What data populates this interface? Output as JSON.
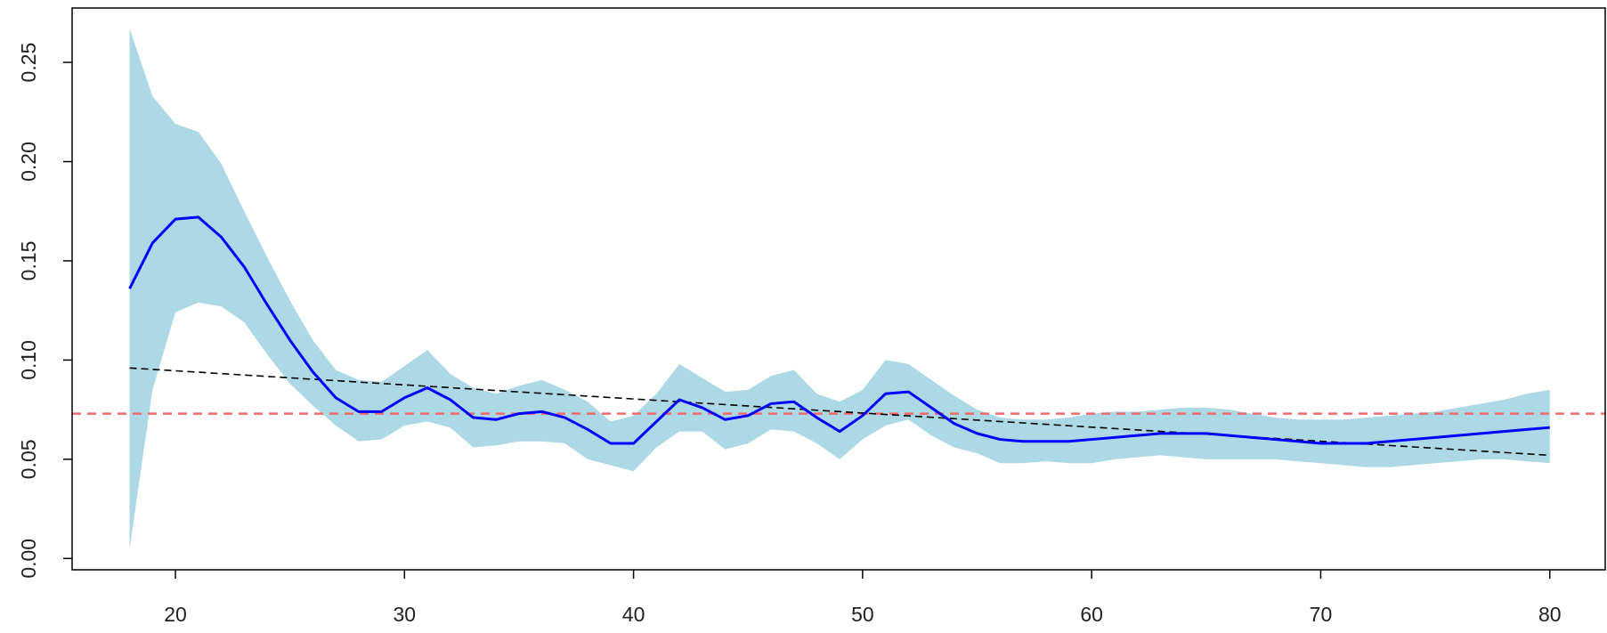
{
  "chart_data": {
    "type": "line",
    "x": [
      18,
      19,
      20,
      21,
      22,
      23,
      24,
      25,
      26,
      27,
      28,
      29,
      30,
      31,
      32,
      33,
      34,
      35,
      36,
      37,
      38,
      39,
      40,
      41,
      42,
      43,
      44,
      45,
      46,
      47,
      48,
      49,
      50,
      51,
      52,
      53,
      54,
      55,
      56,
      57,
      58,
      59,
      60,
      61,
      62,
      63,
      64,
      65,
      66,
      67,
      68,
      69,
      70,
      71,
      72,
      73,
      74,
      75,
      76,
      77,
      78,
      79,
      80
    ],
    "series": [
      {
        "color": "#0000ff",
        "values": [
          0.136,
          0.159,
          0.171,
          0.172,
          0.162,
          0.147,
          0.128,
          0.11,
          0.094,
          0.081,
          0.074,
          0.074,
          0.081,
          0.086,
          0.08,
          0.071,
          0.07,
          0.073,
          0.074,
          0.071,
          0.065,
          0.058,
          0.058,
          0.069,
          0.08,
          0.076,
          0.07,
          0.072,
          0.078,
          0.079,
          0.071,
          0.064,
          0.072,
          0.083,
          0.084,
          0.076,
          0.068,
          0.063,
          0.06,
          0.059,
          0.059,
          0.059,
          0.06,
          0.061,
          0.062,
          0.063,
          0.063,
          0.063,
          0.062,
          0.061,
          0.06,
          0.059,
          0.058,
          0.058,
          0.058,
          0.059,
          0.06,
          0.061,
          0.062,
          0.063,
          0.064,
          0.065,
          0.066
        ]
      }
    ],
    "band": {
      "color": "#add8e6",
      "upper": [
        0.267,
        0.233,
        0.219,
        0.215,
        0.199,
        0.175,
        0.152,
        0.13,
        0.11,
        0.095,
        0.09,
        0.089,
        0.097,
        0.105,
        0.093,
        0.086,
        0.083,
        0.087,
        0.09,
        0.085,
        0.079,
        0.069,
        0.072,
        0.083,
        0.098,
        0.091,
        0.084,
        0.085,
        0.092,
        0.095,
        0.083,
        0.079,
        0.085,
        0.1,
        0.098,
        0.09,
        0.082,
        0.075,
        0.071,
        0.07,
        0.07,
        0.071,
        0.073,
        0.074,
        0.074,
        0.075,
        0.076,
        0.076,
        0.075,
        0.073,
        0.071,
        0.07,
        0.07,
        0.07,
        0.071,
        0.072,
        0.073,
        0.074,
        0.076,
        0.078,
        0.08,
        0.083,
        0.085
      ],
      "lower": [
        0.005,
        0.085,
        0.124,
        0.129,
        0.127,
        0.119,
        0.103,
        0.088,
        0.077,
        0.067,
        0.059,
        0.06,
        0.067,
        0.069,
        0.066,
        0.056,
        0.057,
        0.059,
        0.059,
        0.058,
        0.05,
        0.047,
        0.044,
        0.056,
        0.064,
        0.064,
        0.055,
        0.058,
        0.065,
        0.064,
        0.058,
        0.05,
        0.06,
        0.067,
        0.07,
        0.062,
        0.056,
        0.053,
        0.048,
        0.048,
        0.049,
        0.048,
        0.048,
        0.05,
        0.051,
        0.052,
        0.051,
        0.05,
        0.05,
        0.05,
        0.05,
        0.049,
        0.048,
        0.047,
        0.046,
        0.046,
        0.047,
        0.048,
        0.049,
        0.05,
        0.05,
        0.049,
        0.048
      ]
    },
    "trend": {
      "color": "#000000",
      "x": [
        18,
        80
      ],
      "values": [
        0.096,
        0.052
      ]
    },
    "hline": {
      "color": "#f26b6b",
      "value": 0.073
    },
    "xlim": [
      15.49,
      82.42
    ],
    "ylim": [
      -0.0057,
      0.2774
    ],
    "xticks": [
      20,
      30,
      40,
      50,
      60,
      70,
      80
    ],
    "yticks": [
      {
        "value": 0,
        "label": "0.00"
      },
      0.05,
      {
        "value": 0.1,
        "label": "0.10"
      },
      0.15,
      {
        "value": 0.2,
        "label": "0.20"
      },
      0.25
    ]
  }
}
